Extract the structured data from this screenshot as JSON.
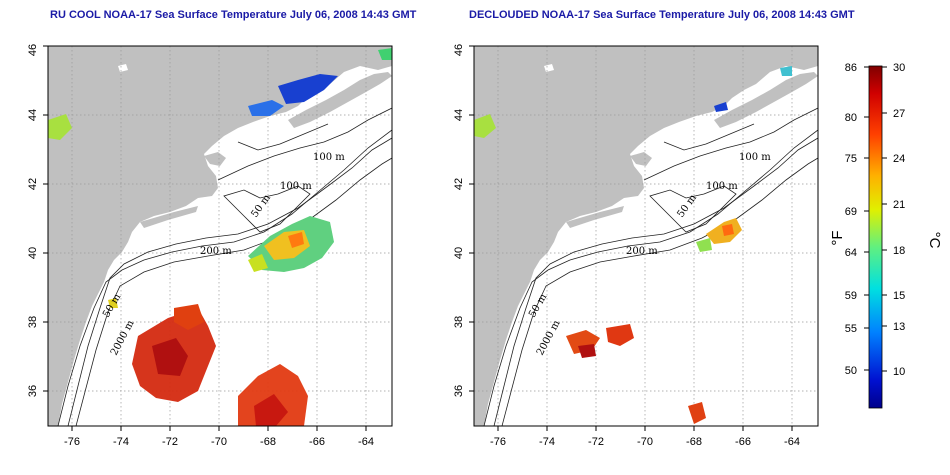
{
  "panels": [
    {
      "title": "RU COOL NOAA-17 Sea Surface Temperature July 06, 2008 14:43 GMT",
      "contour_labels": [
        "100 m",
        "100 m",
        "50 m",
        "200 m",
        "50 m",
        "2000 m"
      ]
    },
    {
      "title": "DECLOUDED NOAA-17 Sea Surface Temperature July 06, 2008 14:43 GMT",
      "contour_labels": [
        "100 m",
        "100 m",
        "50 m",
        "200 m",
        "50 m",
        "2000 m"
      ]
    }
  ],
  "axes": {
    "x_ticks": [
      "-76",
      "-74",
      "-72",
      "-70",
      "-68",
      "-66",
      "-64"
    ],
    "y_ticks": [
      "36",
      "38",
      "40",
      "42",
      "44",
      "46"
    ],
    "x_range": [
      -77.0,
      -63.0
    ],
    "y_range": [
      35.0,
      46.0
    ],
    "grid": "dotted",
    "land_color": "#c0c0c0",
    "ocean_color": "#ffffff"
  },
  "colorbar": {
    "fahrenheit_ticks": [
      "86",
      "80",
      "75",
      "69",
      "64",
      "59",
      "55",
      "50"
    ],
    "celsius_ticks": [
      "30",
      "27",
      "24",
      "21",
      "18",
      "15",
      "13",
      "10"
    ],
    "fahrenheit_label": "°F",
    "celsius_label": "°C",
    "range_c": [
      7,
      30
    ]
  }
}
